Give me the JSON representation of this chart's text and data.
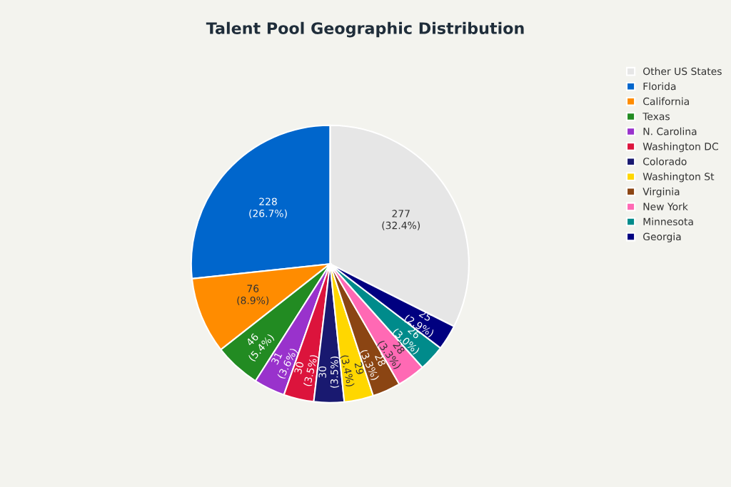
{
  "chart_data": {
    "type": "pie",
    "title": "Talent Pool Geographic Distribution",
    "categories": [
      "Other US States",
      "Florida",
      "California",
      "Texas",
      "N. Carolina",
      "Washington DC",
      "Colorado",
      "Washington St",
      "Virginia",
      "New York",
      "Minnesota",
      "Georgia"
    ],
    "values": [
      277,
      228,
      76,
      46,
      31,
      30,
      30,
      29,
      28,
      28,
      26,
      25
    ],
    "value_labels": [
      "277\n(32.4%)",
      "228\n(26.7%)",
      "76\n(8.9%)",
      "46\n(5.4%)",
      "31\n(3.6%)",
      "30\n(3.5%)",
      "30\n(3.5%)",
      "29\n(3.4%)",
      "28\n(3.3%)",
      "28\n(3.3%)",
      "26\n(3.0%)",
      "25\n(2.9%)"
    ],
    "colors": [
      "#e6e6e6",
      "#0066cc",
      "#ff8c00",
      "#228b22",
      "#9932cc",
      "#dc143c",
      "#191970",
      "#ffd700",
      "#8b4513",
      "#ff69b4",
      "#008b8b",
      "#000080"
    ],
    "legend": "top right"
  }
}
